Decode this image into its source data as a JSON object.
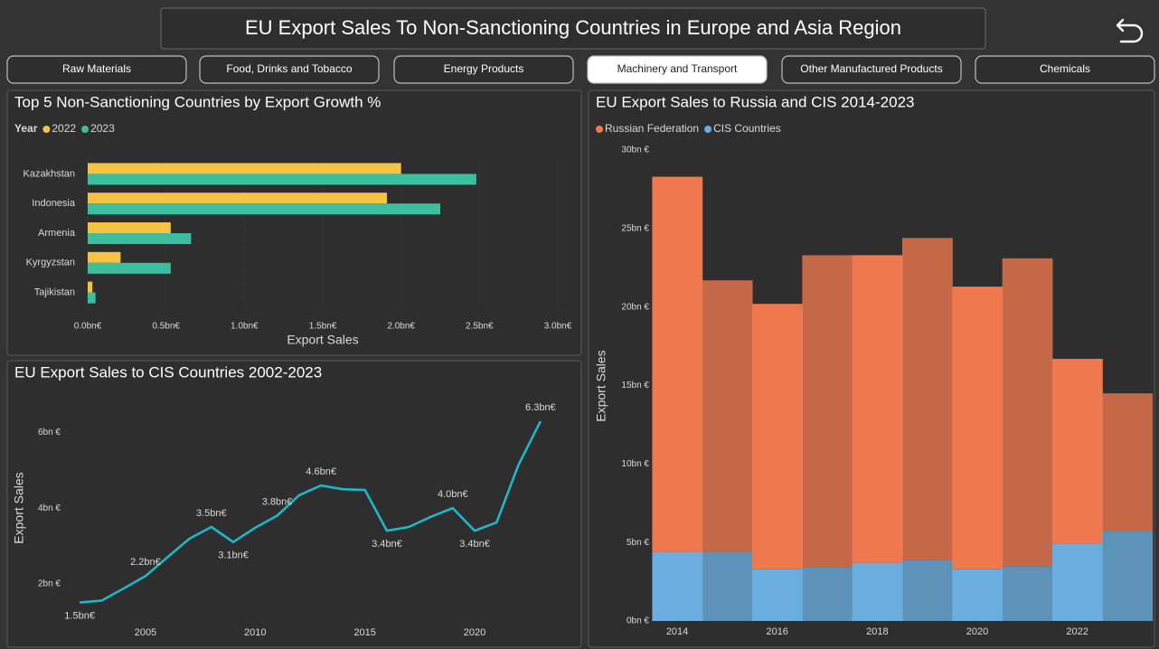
{
  "header": {
    "title": "EU Export Sales To Non-Sanctioning Countries in Europe and Asia Region"
  },
  "tabs": [
    {
      "label": "Raw Materials",
      "selected": false
    },
    {
      "label": "Food, Drinks and Tobacco",
      "selected": false
    },
    {
      "label": "Energy Products",
      "selected": false
    },
    {
      "label": "Machinery and Transport",
      "selected": true
    },
    {
      "label": "Other Manufactured Products",
      "selected": false
    },
    {
      "label": "Chemicals",
      "selected": false
    }
  ],
  "chart_data": [
    {
      "type": "hbar",
      "title": "Top 5 Non-Sanctioning Countries by Export Growth %",
      "legend_title": "Year",
      "x_label": "Export Sales",
      "categories": [
        "Kazakhstan",
        "Indonesia",
        "Armenia",
        "Kyrgyzstan",
        "Tajikistan"
      ],
      "series": [
        {
          "name": "2022",
          "color": "#f5c242",
          "values": [
            2.0,
            1.91,
            0.53,
            0.21,
            0.03
          ]
        },
        {
          "name": "2023",
          "color": "#3cbf9f",
          "values": [
            2.48,
            2.25,
            0.66,
            0.53,
            0.05
          ]
        }
      ],
      "xlim": [
        0,
        3.0
      ],
      "xticks": [
        {
          "value": 0,
          "label": "0.0bn€"
        },
        {
          "value": 0.5,
          "label": "0.5bn€"
        },
        {
          "value": 1.0,
          "label": "1.0bn€"
        },
        {
          "value": 1.5,
          "label": "1.5bn€"
        },
        {
          "value": 2.0,
          "label": "2.0bn€"
        },
        {
          "value": 2.5,
          "label": "2.5bn€"
        },
        {
          "value": 3.0,
          "label": "3.0bn€"
        }
      ],
      "grid": true
    },
    {
      "type": "line",
      "title": "EU Export Sales to CIS Countries 2002-2023",
      "y_label": "Export Sales",
      "color": "#1fb8c8",
      "x": [
        2002,
        2003,
        2004,
        2005,
        2006,
        2007,
        2008,
        2009,
        2010,
        2011,
        2012,
        2013,
        2014,
        2015,
        2016,
        2017,
        2018,
        2019,
        2020,
        2021,
        2022,
        2023
      ],
      "values": [
        1.5,
        1.55,
        1.87,
        2.2,
        2.7,
        3.19,
        3.5,
        3.1,
        3.48,
        3.8,
        4.34,
        4.6,
        4.5,
        4.48,
        3.4,
        3.5,
        3.77,
        4.0,
        3.4,
        3.62,
        5.15,
        6.3
      ],
      "value_labels": [
        "1.5bn€",
        null,
        null,
        "2.2bn€",
        null,
        null,
        "3.5bn€",
        "3.1bn€",
        null,
        "3.8bn€",
        null,
        "4.6bn€",
        null,
        null,
        "3.4bn€",
        null,
        null,
        "4.0bn€",
        "3.4bn€",
        null,
        null,
        "6.3bn€"
      ],
      "xlim": [
        2001.5,
        2023.5
      ],
      "xticks": [
        2005,
        2010,
        2015,
        2020
      ],
      "ylim": [
        0.7,
        6.9
      ],
      "yticks": [
        {
          "value": 2,
          "label": "2bn €"
        },
        {
          "value": 4,
          "label": "4bn €"
        },
        {
          "value": 6,
          "label": "6bn €"
        }
      ]
    },
    {
      "type": "stacked_bar",
      "title": "EU Export Sales to Russia and CIS 2014-2023",
      "y_label": "Export Sales",
      "x": [
        2014,
        2015,
        2016,
        2017,
        2018,
        2019,
        2020,
        2021,
        2022,
        2023
      ],
      "series": [
        {
          "name": "Russian Federation",
          "color": "#f0784f",
          "values": [
            23.9,
            17.3,
            16.9,
            19.9,
            19.6,
            20.5,
            18.0,
            19.6,
            11.8,
            8.8
          ]
        },
        {
          "name": "CIS Countries",
          "color": "#6aaee0",
          "values": [
            4.4,
            4.4,
            3.3,
            3.4,
            3.7,
            3.9,
            3.3,
            3.5,
            4.9,
            5.7
          ]
        }
      ],
      "stack_order": "bottom_last_series",
      "xlim": [
        2013.8,
        2023.2
      ],
      "xticks": [
        2014,
        2016,
        2018,
        2020,
        2022
      ],
      "ylim": [
        0,
        30
      ],
      "yticks": [
        {
          "value": 0,
          "label": "0bn €"
        },
        {
          "value": 5,
          "label": "5bn €"
        },
        {
          "value": 10,
          "label": "10bn €"
        },
        {
          "value": 15,
          "label": "15bn €"
        },
        {
          "value": 20,
          "label": "20bn €"
        },
        {
          "value": 25,
          "label": "25bn €"
        },
        {
          "value": 30,
          "label": "30bn €"
        }
      ]
    }
  ]
}
